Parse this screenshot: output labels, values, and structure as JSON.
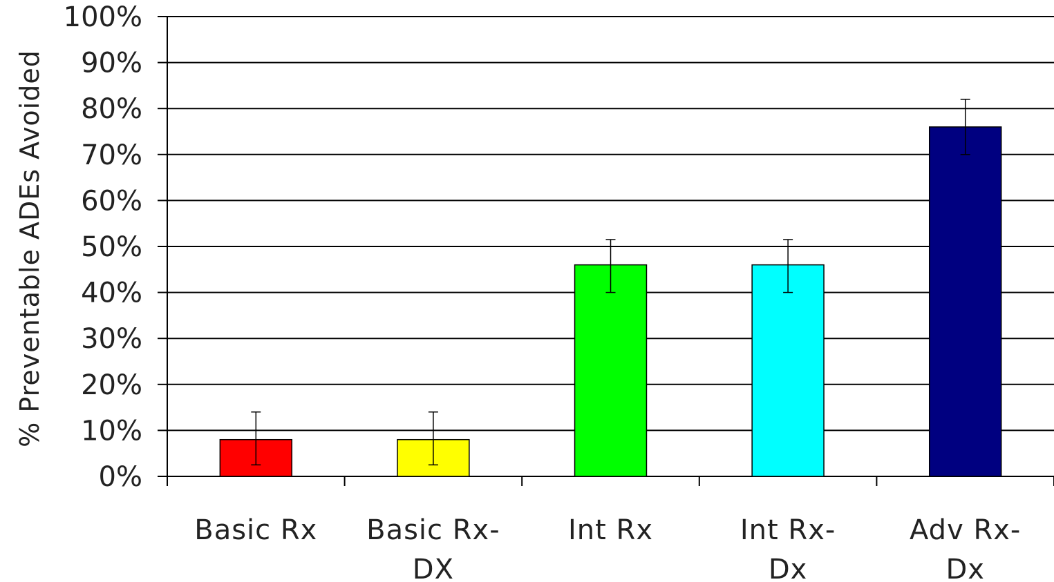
{
  "chart_data": {
    "type": "bar",
    "title": "",
    "xlabel": "",
    "ylabel": "% Preventable ADEs Avoided",
    "ylim": [
      0,
      100
    ],
    "yticks": [
      "0%",
      "10%",
      "20%",
      "30%",
      "40%",
      "50%",
      "60%",
      "70%",
      "80%",
      "90%",
      "100%"
    ],
    "categories": [
      {
        "label": "Basic Rx",
        "lines": [
          "Basic Rx"
        ]
      },
      {
        "label": "Basic Rx-DX",
        "lines": [
          "Basic Rx-",
          "DX"
        ]
      },
      {
        "label": "Int Rx",
        "lines": [
          "Int Rx"
        ]
      },
      {
        "label": "Int Rx-Dx",
        "lines": [
          "Int Rx-",
          "Dx"
        ]
      },
      {
        "label": "Adv Rx-Dx",
        "lines": [
          "Adv Rx-",
          "Dx"
        ]
      }
    ],
    "values": [
      8,
      8,
      46,
      46,
      76
    ],
    "error_low": [
      2.5,
      2.5,
      40,
      40,
      70
    ],
    "error_high": [
      14,
      14,
      51.5,
      51.5,
      82
    ],
    "colors": [
      "#ff0000",
      "#ffff00",
      "#00ff00",
      "#00ffff",
      "#000080"
    ],
    "grid": true,
    "legend": "none"
  }
}
